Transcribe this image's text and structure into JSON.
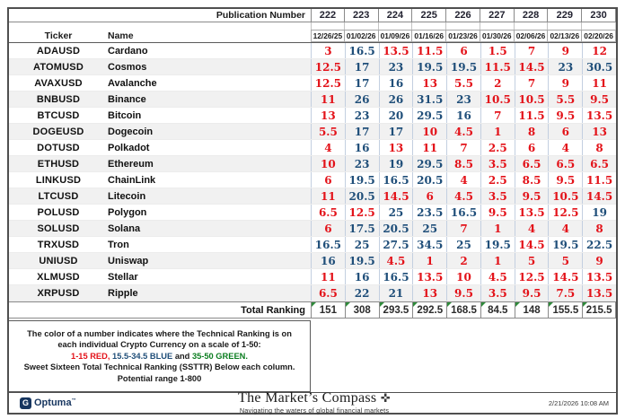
{
  "colors": {
    "red": "#e31219",
    "blue": "#1f4e79",
    "green": "#0a7d1f",
    "navy_brand": "#16355f"
  },
  "header": {
    "publication_label": "Publication Number",
    "publication_numbers": [
      "222",
      "223",
      "224",
      "225",
      "226",
      "227",
      "228",
      "229",
      "230"
    ],
    "ticker_label": "Ticker",
    "name_label": "Name",
    "dates": [
      "12/26/25",
      "01/02/26",
      "01/09/26",
      "01/16/26",
      "01/23/26",
      "01/30/26",
      "02/06/26",
      "02/13/26",
      "02/20/26"
    ]
  },
  "chart_data": {
    "type": "table",
    "title": "Sweet Sixteen Crypto Technical Rankings",
    "columns": [
      "12/26/25",
      "01/02/26",
      "01/09/26",
      "01/16/26",
      "01/23/26",
      "01/30/26",
      "02/06/26",
      "02/13/26",
      "02/20/26"
    ],
    "rows": [
      {
        "ticker": "ADAUSD",
        "name": "Cardano",
        "values": [
          3,
          16.5,
          13.5,
          11.5,
          6,
          1.5,
          7,
          9,
          12
        ]
      },
      {
        "ticker": "ATOMUSD",
        "name": "Cosmos",
        "values": [
          12.5,
          17,
          23,
          19.5,
          19.5,
          11.5,
          14.5,
          23,
          30.5
        ]
      },
      {
        "ticker": "AVAXUSD",
        "name": "Avalanche",
        "values": [
          12.5,
          17,
          16,
          13,
          5.5,
          2,
          7,
          9,
          11
        ]
      },
      {
        "ticker": "BNBUSD",
        "name": "Binance",
        "values": [
          11,
          26,
          26,
          31.5,
          23,
          10.5,
          10.5,
          5.5,
          9.5
        ]
      },
      {
        "ticker": "BTCUSD",
        "name": "Bitcoin",
        "values": [
          13,
          23,
          20,
          29.5,
          16,
          7,
          11.5,
          9.5,
          13.5
        ]
      },
      {
        "ticker": "DOGEUSD",
        "name": "Dogecoin",
        "values": [
          5.5,
          17,
          17,
          10,
          4.5,
          1,
          8,
          6,
          13
        ]
      },
      {
        "ticker": "DOTUSD",
        "name": "Polkadot",
        "values": [
          4,
          16,
          13,
          11,
          7,
          2.5,
          6,
          4,
          8
        ]
      },
      {
        "ticker": "ETHUSD",
        "name": "Ethereum",
        "values": [
          10,
          23,
          19,
          29.5,
          8.5,
          3.5,
          6.5,
          6.5,
          6.5
        ]
      },
      {
        "ticker": "LINKUSD",
        "name": "ChainLink",
        "values": [
          6,
          19.5,
          16.5,
          20.5,
          4,
          2.5,
          8.5,
          9.5,
          11.5
        ]
      },
      {
        "ticker": "LTCUSD",
        "name": "Litecoin",
        "values": [
          11,
          20.5,
          14.5,
          6,
          4.5,
          3.5,
          9.5,
          10.5,
          14.5
        ]
      },
      {
        "ticker": "POLUSD",
        "name": "Polygon",
        "values": [
          6.5,
          12.5,
          25,
          23.5,
          16.5,
          9.5,
          13.5,
          12.5,
          19
        ]
      },
      {
        "ticker": "SOLUSD",
        "name": "Solana",
        "values": [
          6,
          17.5,
          20.5,
          25,
          7,
          1,
          4,
          4,
          8
        ]
      },
      {
        "ticker": "TRXUSD",
        "name": "Tron",
        "values": [
          16.5,
          25,
          27.5,
          34.5,
          25,
          19.5,
          14.5,
          19.5,
          22.5
        ]
      },
      {
        "ticker": "UNIUSD",
        "name": "Uniswap",
        "values": [
          16,
          19.5,
          4.5,
          1,
          2,
          1,
          5,
          5,
          9
        ]
      },
      {
        "ticker": "XLMUSD",
        "name": "Stellar",
        "values": [
          11,
          16,
          16.5,
          13.5,
          10,
          4.5,
          12.5,
          14.5,
          13.5
        ]
      },
      {
        "ticker": "XRPUSD",
        "name": "Ripple",
        "values": [
          6.5,
          22,
          21,
          13,
          9.5,
          3.5,
          9.5,
          7.5,
          13.5
        ]
      }
    ],
    "total": {
      "label": "Total Ranking",
      "values": [
        151,
        308,
        293.5,
        292.5,
        168.5,
        84.5,
        148,
        155.5,
        215.5
      ]
    },
    "color_rule": {
      "red": "1-15",
      "blue": "15.5-34.5",
      "green": "35-50"
    }
  },
  "legend": {
    "line1": "The color of a number indicates where the Technical Ranking is on",
    "line2": "each individual Crypto Currency on a scale of 1-50:",
    "line3_red": "1-15 RED,",
    "line3_blue": "15.5-34.5 BLUE",
    "line3_and": "and",
    "line3_green": "35-50 GREEN.",
    "line4": "Sweet Sixteen Total Technical Ranking (SSTTR) Below each column.",
    "line5": "Potential range 1-800"
  },
  "footer": {
    "optuma_label": "Optuma",
    "optuma_tm": "™",
    "brand_title": "The Market’s Compass",
    "brand_icon": "✜",
    "brand_tagline": "Navigating the waters of global financial markets",
    "timestamp": "2/21/2026 10:08 AM"
  }
}
